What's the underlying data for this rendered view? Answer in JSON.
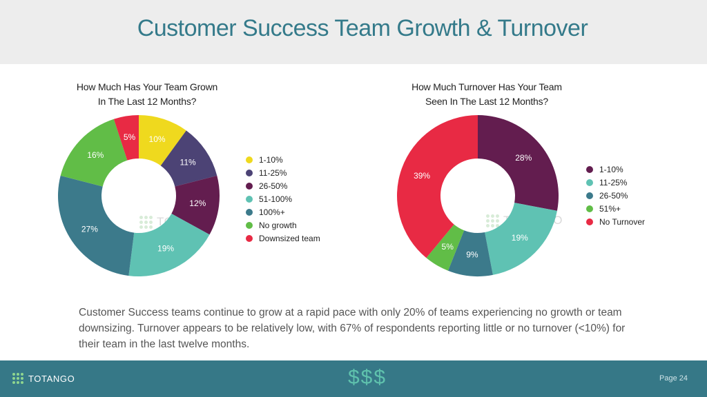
{
  "header": {
    "title": "Customer Success Team Growth & Turnover"
  },
  "chart_data": [
    {
      "type": "pie",
      "title_line1": "How Much Has Your Team Grown",
      "title_line2": "In The Last 12 Months?",
      "categories": [
        "1-10%",
        "11-25%",
        "26-50%",
        "51-100%",
        "100%+",
        "No growth",
        "Downsized team"
      ],
      "values": [
        10,
        11,
        12,
        19,
        27,
        16,
        5
      ],
      "labels": [
        "10%",
        "11%",
        "12%",
        "19%",
        "27%",
        "16%",
        "5%"
      ],
      "colors": [
        "#efd91e",
        "#4c4375",
        "#631d4f",
        "#5fc2b3",
        "#3c7a8b",
        "#61bd47",
        "#e82a44"
      ],
      "label_colors": [
        "#ffffff",
        "#ffffff",
        "#ffffff",
        "#ffffff",
        "#ffffff",
        "#ffffff",
        "#ffffff"
      ],
      "legend_placement": "right"
    },
    {
      "type": "pie",
      "title_line1": "How Much Turnover Has Your Team",
      "title_line2": "Seen In The Last 12 Months?",
      "categories": [
        "1-10%",
        "11-25%",
        "26-50%",
        "51%+",
        "No Turnover"
      ],
      "values": [
        28,
        19,
        9,
        5,
        39
      ],
      "labels": [
        "28%",
        "19%",
        "9%",
        "5%",
        "39%"
      ],
      "colors": [
        "#631d4f",
        "#5fc2b3",
        "#3c7a8b",
        "#61bd47",
        "#e82a44"
      ],
      "label_colors": [
        "#ffffff",
        "#ffffff",
        "#ffffff",
        "#ffffff",
        "#ffffff"
      ],
      "legend_placement": "right"
    }
  ],
  "watermark": {
    "text": "TOTANGO"
  },
  "summary": {
    "text": "Customer Success teams continue to grow at a rapid pace with only 20% of teams experiencing no growth or team downsizing. Turnover appears to be relatively low, with 67% of respondents reporting little or no turnover (<10%) for their team in the last twelve months."
  },
  "footer": {
    "logo_text": "TOTANGO",
    "dollars": "$$$",
    "page": "Page 24"
  },
  "colors": {
    "header_bg": "#ededed",
    "title": "#347a8a",
    "footer_bg": "#367887"
  }
}
